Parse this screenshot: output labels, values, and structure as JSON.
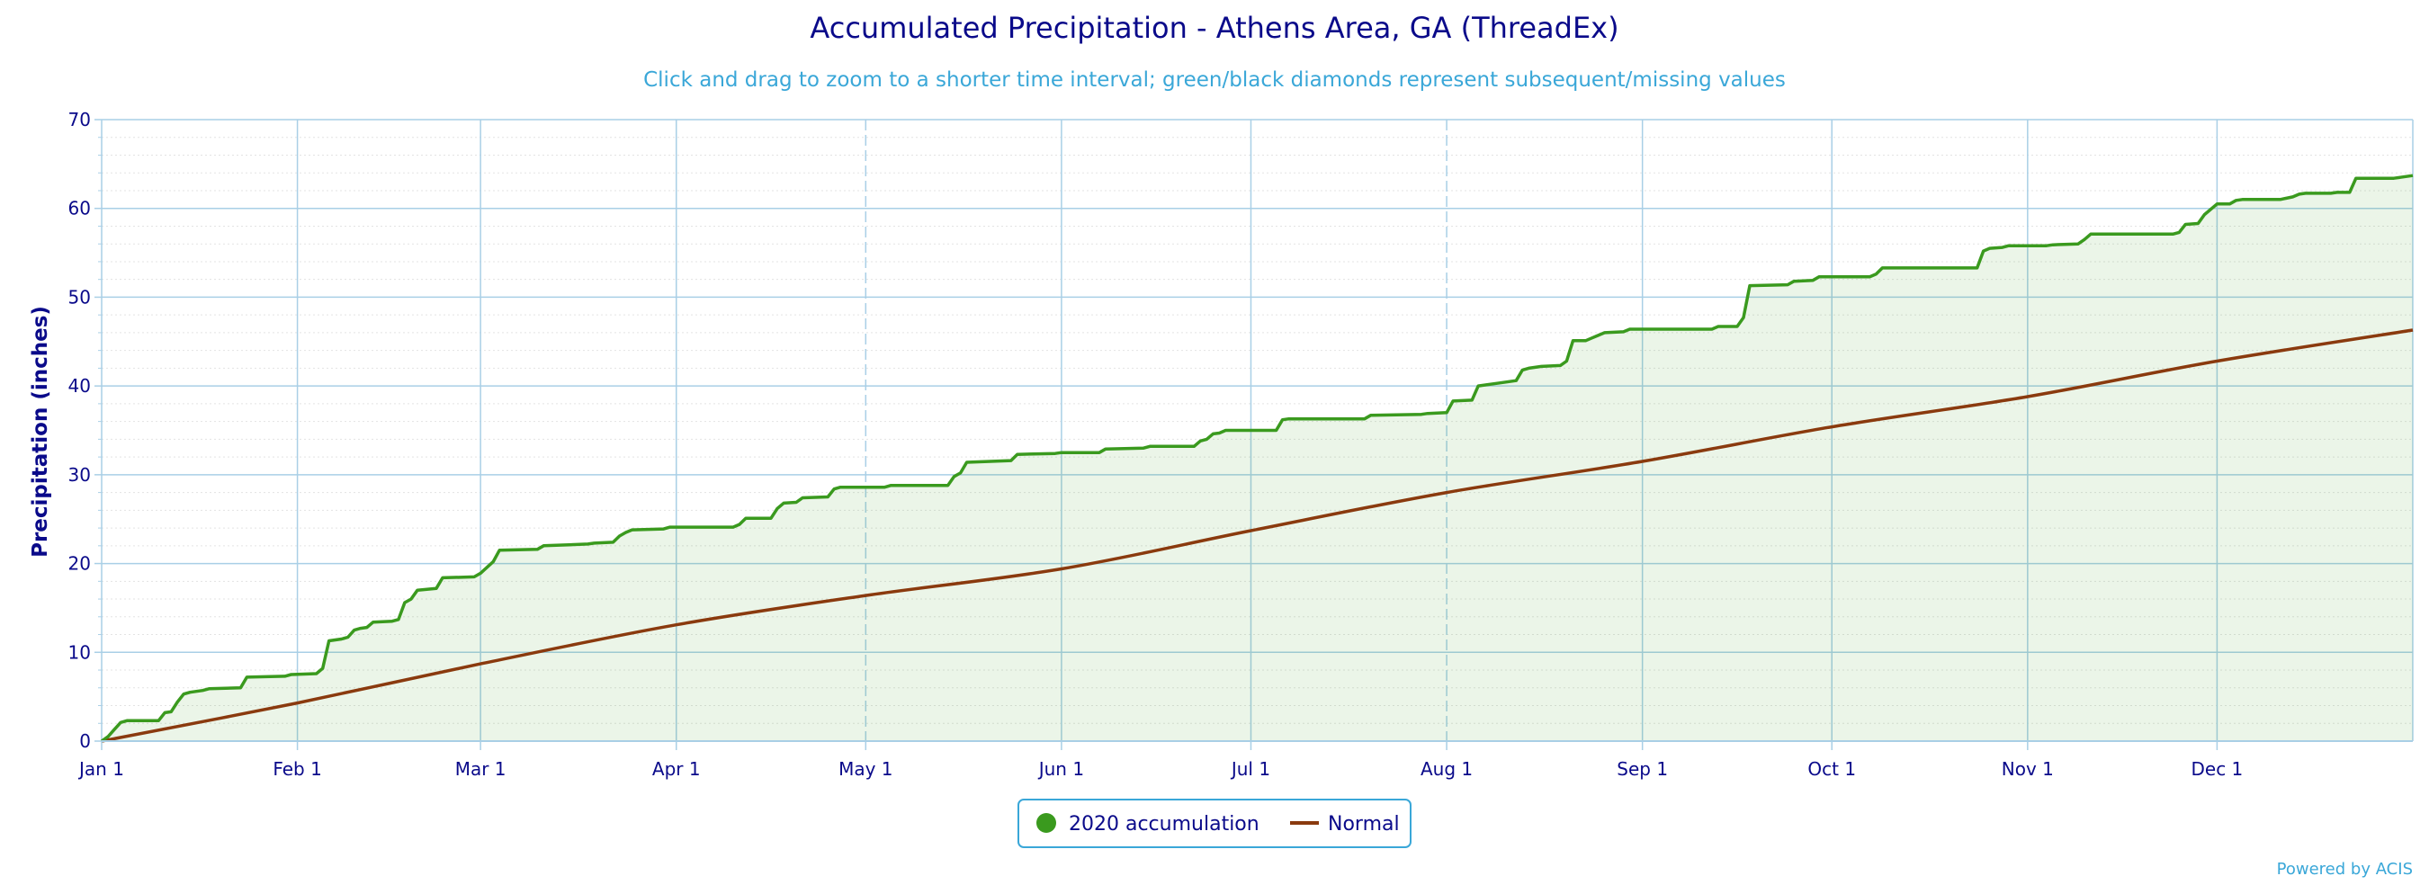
{
  "chart_data": {
    "type": "line",
    "title": "Accumulated Precipitation - Athens Area, GA (ThreadEx)",
    "subtitle": "Click and drag to zoom to a shorter time interval; green/black diamonds represent subsequent/missing values",
    "ylabel": "Precipitation (inches)",
    "xlabel": "",
    "x_ticks": [
      "Jan 1",
      "Feb 1",
      "Mar 1",
      "Apr 1",
      "May 1",
      "Jun 1",
      "Jul 1",
      "Aug 1",
      "Sep 1",
      "Oct 1",
      "Nov 1",
      "Dec 1"
    ],
    "y_ticks": [
      "0",
      "10",
      "20",
      "30",
      "40",
      "50",
      "60",
      "70"
    ],
    "ylim": [
      0,
      70
    ],
    "x_range_days": [
      0,
      366
    ],
    "grid": true,
    "legend_position": "bottom-center",
    "series": [
      {
        "name": "2020 accumulation",
        "color": "#3a9a1e",
        "fill": "rgba(58,154,30,0.10)",
        "style": "step",
        "points": [
          [
            0,
            0
          ],
          [
            1,
            0.5
          ],
          [
            2,
            1.3
          ],
          [
            3,
            2.1
          ],
          [
            4,
            2.3
          ],
          [
            9,
            2.3
          ],
          [
            10,
            3.2
          ],
          [
            11,
            3.3
          ],
          [
            12,
            4.4
          ],
          [
            13,
            5.3
          ],
          [
            14,
            5.5
          ],
          [
            16,
            5.7
          ],
          [
            17,
            5.9
          ],
          [
            22,
            6.0
          ],
          [
            23,
            7.2
          ],
          [
            29,
            7.3
          ],
          [
            30,
            7.5
          ],
          [
            34,
            7.6
          ],
          [
            35,
            8.2
          ],
          [
            36,
            11.3
          ],
          [
            38,
            11.5
          ],
          [
            39,
            11.7
          ],
          [
            40,
            12.5
          ],
          [
            41,
            12.7
          ],
          [
            42,
            12.8
          ],
          [
            43,
            13.4
          ],
          [
            46,
            13.5
          ],
          [
            47,
            13.7
          ],
          [
            48,
            15.6
          ],
          [
            49,
            16.0
          ],
          [
            50,
            17.0
          ],
          [
            53,
            17.2
          ],
          [
            54,
            18.4
          ],
          [
            59,
            18.5
          ],
          [
            60,
            18.9
          ],
          [
            62,
            20.2
          ],
          [
            63,
            21.5
          ],
          [
            69,
            21.6
          ],
          [
            70,
            22.0
          ],
          [
            77,
            22.2
          ],
          [
            78,
            22.3
          ],
          [
            81,
            22.4
          ],
          [
            82,
            23.1
          ],
          [
            83,
            23.5
          ],
          [
            84,
            23.8
          ],
          [
            89,
            23.9
          ],
          [
            90,
            24.1
          ],
          [
            100,
            24.1
          ],
          [
            101,
            24.4
          ],
          [
            102,
            25.1
          ],
          [
            106,
            25.1
          ],
          [
            107,
            26.2
          ],
          [
            108,
            26.8
          ],
          [
            110,
            26.9
          ],
          [
            111,
            27.4
          ],
          [
            115,
            27.5
          ],
          [
            116,
            28.4
          ],
          [
            117,
            28.6
          ],
          [
            124,
            28.6
          ],
          [
            125,
            28.8
          ],
          [
            134,
            28.8
          ],
          [
            135,
            29.8
          ],
          [
            136,
            30.2
          ],
          [
            137,
            31.4
          ],
          [
            144,
            31.6
          ],
          [
            145,
            32.3
          ],
          [
            151,
            32.4
          ],
          [
            152,
            32.5
          ],
          [
            158,
            32.5
          ],
          [
            159,
            32.9
          ],
          [
            165,
            33.0
          ],
          [
            166,
            33.2
          ],
          [
            173,
            33.2
          ],
          [
            174,
            33.8
          ],
          [
            175,
            34.0
          ],
          [
            176,
            34.6
          ],
          [
            177,
            34.7
          ],
          [
            178,
            35.0
          ],
          [
            186,
            35.0
          ],
          [
            187,
            36.2
          ],
          [
            188,
            36.3
          ],
          [
            200,
            36.3
          ],
          [
            201,
            36.7
          ],
          [
            209,
            36.8
          ],
          [
            210,
            36.9
          ],
          [
            213,
            37.0
          ],
          [
            214,
            38.3
          ],
          [
            217,
            38.4
          ],
          [
            218,
            40.0
          ],
          [
            221,
            40.3
          ],
          [
            224,
            40.6
          ],
          [
            225,
            41.8
          ],
          [
            226,
            42.0
          ],
          [
            228,
            42.2
          ],
          [
            231,
            42.3
          ],
          [
            232,
            42.8
          ],
          [
            233,
            45.1
          ],
          [
            235,
            45.1
          ],
          [
            236,
            45.4
          ],
          [
            238,
            46.0
          ],
          [
            241,
            46.1
          ],
          [
            242,
            46.4
          ],
          [
            255,
            46.4
          ],
          [
            256,
            46.7
          ],
          [
            259,
            46.7
          ],
          [
            260,
            47.7
          ],
          [
            261,
            51.3
          ],
          [
            267,
            51.4
          ],
          [
            268,
            51.8
          ],
          [
            271,
            51.9
          ],
          [
            272,
            52.3
          ],
          [
            280,
            52.3
          ],
          [
            281,
            52.6
          ],
          [
            282,
            53.3
          ],
          [
            297,
            53.3
          ],
          [
            298,
            55.2
          ],
          [
            299,
            55.5
          ],
          [
            301,
            55.6
          ],
          [
            302,
            55.8
          ],
          [
            308,
            55.8
          ],
          [
            309,
            55.9
          ],
          [
            313,
            56.0
          ],
          [
            314,
            56.5
          ],
          [
            315,
            57.1
          ],
          [
            328,
            57.1
          ],
          [
            329,
            57.3
          ],
          [
            330,
            58.2
          ],
          [
            332,
            58.3
          ],
          [
            333,
            59.3
          ],
          [
            335,
            60.5
          ],
          [
            337,
            60.5
          ],
          [
            338,
            60.9
          ],
          [
            339,
            61.0
          ],
          [
            345,
            61.0
          ],
          [
            347,
            61.3
          ],
          [
            348,
            61.6
          ],
          [
            349,
            61.7
          ],
          [
            353,
            61.7
          ],
          [
            354,
            61.8
          ],
          [
            356,
            61.8
          ],
          [
            357,
            63.4
          ],
          [
            363,
            63.4
          ],
          [
            364,
            63.5
          ],
          [
            366,
            63.7
          ]
        ]
      },
      {
        "name": "Normal",
        "color": "#8a3a0e",
        "style": "smooth",
        "points": [
          [
            0,
            0
          ],
          [
            31,
            4.3
          ],
          [
            60,
            8.7
          ],
          [
            91,
            13.1
          ],
          [
            121,
            16.4
          ],
          [
            152,
            19.4
          ],
          [
            182,
            23.7
          ],
          [
            213,
            28.0
          ],
          [
            244,
            31.5
          ],
          [
            274,
            35.4
          ],
          [
            305,
            38.8
          ],
          [
            335,
            42.8
          ],
          [
            366,
            46.3
          ]
        ]
      }
    ]
  },
  "legend": {
    "series1_label": "2020 accumulation",
    "series2_label": "Normal"
  },
  "credits": "Powered by ACIS",
  "colors": {
    "grid": "#a9cfe6",
    "minor_grid": "#e3e3e3",
    "axis": "#a9cfe6",
    "text": "#0a0a8a",
    "accent": "#3aa7d8"
  }
}
